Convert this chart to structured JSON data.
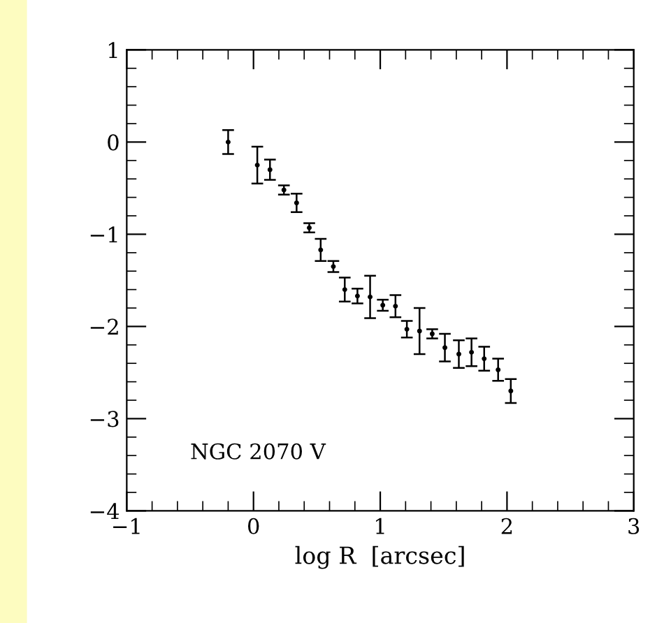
{
  "chart_data": {
    "type": "scatter",
    "xlabel": "log R  [arcsec]",
    "annotations": [
      "NGC 2070 V"
    ],
    "x": [
      -0.2,
      0.03,
      0.13,
      0.24,
      0.34,
      0.44,
      0.53,
      0.63,
      0.72,
      0.82,
      0.92,
      1.02,
      1.12,
      1.21,
      1.31,
      1.41,
      1.51,
      1.62,
      1.72,
      1.82,
      1.93,
      2.03
    ],
    "values": [
      0.0,
      -0.25,
      -0.3,
      -0.52,
      -0.66,
      -0.93,
      -1.17,
      -1.35,
      -1.6,
      -1.67,
      -1.68,
      -1.77,
      -1.78,
      -2.03,
      -2.05,
      -2.08,
      -2.23,
      -2.3,
      -2.28,
      -2.35,
      -2.47,
      -2.7
    ],
    "errors": [
      0.13,
      0.2,
      0.11,
      0.05,
      0.1,
      0.05,
      0.12,
      0.06,
      0.13,
      0.08,
      0.23,
      0.06,
      0.12,
      0.09,
      0.25,
      0.05,
      0.15,
      0.15,
      0.15,
      0.13,
      0.12,
      0.13
    ],
    "color": "#000000",
    "marker": "circle",
    "xlim": [
      -1,
      3
    ],
    "ylim": [
      -4,
      1
    ],
    "xticks": [
      -1,
      0,
      1,
      2,
      3
    ],
    "yticks": [
      -4,
      -3,
      -2,
      -1,
      0,
      1
    ],
    "grid": false
  }
}
